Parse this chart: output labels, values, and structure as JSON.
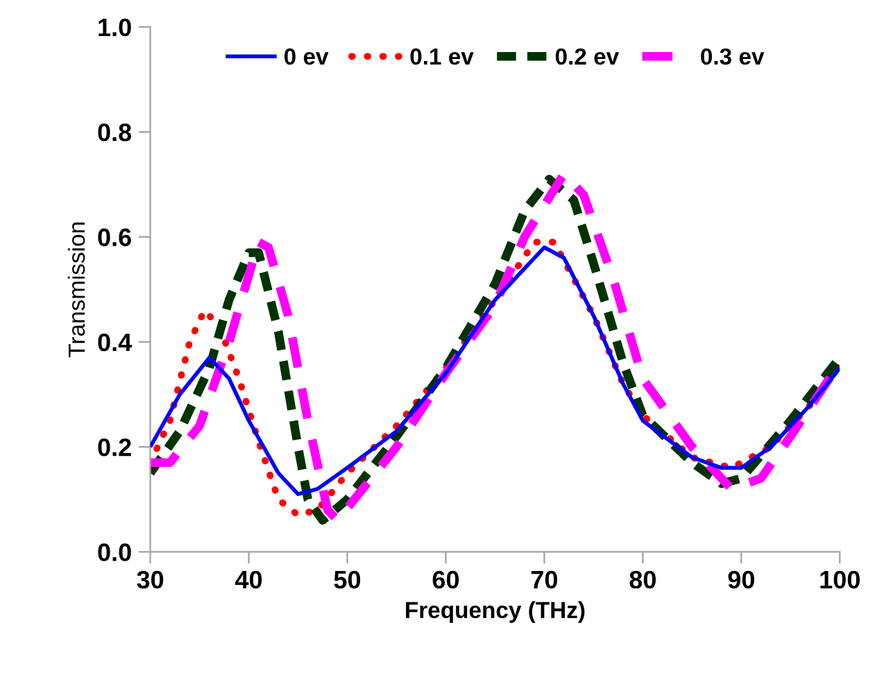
{
  "chart_data": {
    "type": "line",
    "xlabel": "Frequency (THz)",
    "ylabel": "Transmission",
    "xlim": [
      30,
      100
    ],
    "xticks": [
      30,
      40,
      50,
      60,
      70,
      80,
      90,
      100
    ],
    "ylim": [
      0,
      1.0
    ],
    "yticks": [
      {
        "value": 0,
        "label": "0.0"
      },
      0.2,
      0.4,
      0.6,
      0.8,
      {
        "value": 1.0,
        "label": "1.0"
      }
    ],
    "grid": false,
    "legend": "top",
    "marker": "none",
    "series": [
      {
        "name": "0 ev",
        "color": "#0000ff",
        "line_style": "solid",
        "x": [
          30,
          33,
          36,
          38,
          40,
          43,
          45,
          47,
          50,
          55,
          60,
          65,
          70,
          72,
          75,
          78,
          80,
          85,
          88,
          90,
          93,
          97,
          100
        ],
        "values": [
          0.2,
          0.3,
          0.37,
          0.33,
          0.25,
          0.15,
          0.11,
          0.12,
          0.16,
          0.23,
          0.34,
          0.48,
          0.58,
          0.56,
          0.45,
          0.32,
          0.25,
          0.18,
          0.16,
          0.16,
          0.2,
          0.28,
          0.35
        ]
      },
      {
        "name": "0.1 ev",
        "color": "#ff0000",
        "line_style": "dotted",
        "x": [
          30,
          32,
          34,
          35.5,
          37,
          39,
          41,
          43,
          45,
          47,
          50,
          55,
          60,
          65,
          69,
          71,
          75,
          78,
          80,
          85,
          89,
          93,
          97,
          100
        ],
        "values": [
          0.17,
          0.25,
          0.4,
          0.46,
          0.43,
          0.33,
          0.21,
          0.1,
          0.07,
          0.08,
          0.15,
          0.24,
          0.35,
          0.48,
          0.59,
          0.59,
          0.45,
          0.32,
          0.26,
          0.18,
          0.16,
          0.2,
          0.28,
          0.36
        ]
      },
      {
        "name": "0.2 ev",
        "color": "#003300",
        "line_style": "dashed",
        "x": [
          30,
          33,
          36,
          38,
          40,
          41,
          43,
          45,
          46,
          47.5,
          50,
          55,
          60,
          65,
          68,
          70.5,
          73,
          75,
          78,
          80,
          85,
          88,
          90,
          95,
          100
        ],
        "values": [
          0.15,
          0.23,
          0.35,
          0.48,
          0.57,
          0.57,
          0.42,
          0.2,
          0.1,
          0.06,
          0.1,
          0.22,
          0.35,
          0.51,
          0.65,
          0.71,
          0.67,
          0.55,
          0.36,
          0.26,
          0.17,
          0.13,
          0.14,
          0.25,
          0.37
        ]
      },
      {
        "name": "0.3 ev",
        "color": "#ff00ff",
        "line_style": "dashed",
        "x": [
          30,
          32,
          35,
          38,
          41,
          42,
          44,
          46,
          48,
          49,
          52,
          55,
          60,
          65,
          68,
          72,
          74,
          77,
          80,
          85,
          89,
          92,
          95,
          100
        ],
        "values": [
          0.17,
          0.17,
          0.24,
          0.4,
          0.59,
          0.58,
          0.45,
          0.25,
          0.08,
          0.06,
          0.13,
          0.2,
          0.34,
          0.47,
          0.6,
          0.72,
          0.68,
          0.52,
          0.33,
          0.2,
          0.12,
          0.14,
          0.22,
          0.36
        ]
      }
    ]
  }
}
